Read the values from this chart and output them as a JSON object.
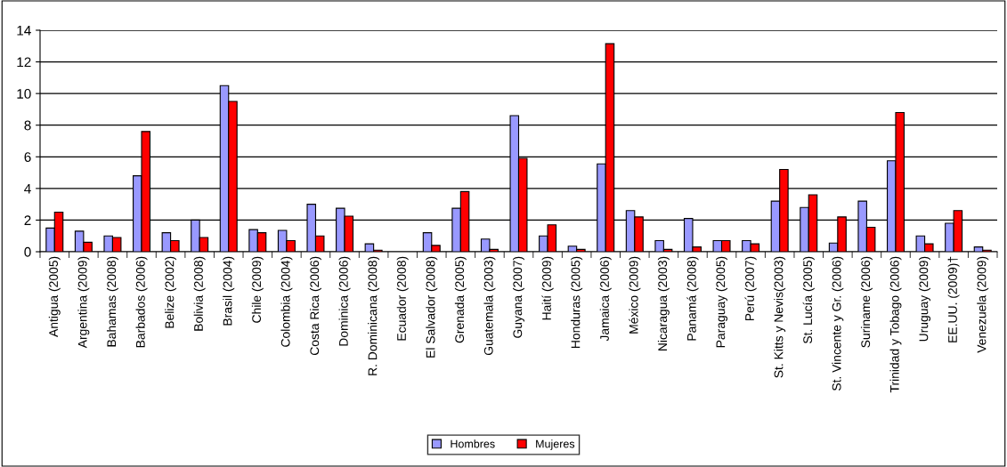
{
  "chart_data": {
    "type": "bar",
    "categories": [
      "Antigua (2005)",
      "Argentina (2009)",
      "Bahamas (2008)",
      "Barbados (2006)",
      "Belize (2002)",
      "Bolivia (2008)",
      "Brasil (2004)",
      "Chile (2009)",
      "Colombia (2004)",
      "Costa Rica (2006)",
      "Dominica (2006)",
      "R. Dominicana (2008)",
      "Ecuador (2008)",
      "El Salvador (2008)",
      "Grenada (2005)",
      "Guatemala (2003)",
      "Guyana (2007)",
      "Haití (2009)",
      "Honduras (2005)",
      "Jamaica (2006)",
      "México (2009)",
      "Nicaragua (2003)",
      "Panamá (2008)",
      "Paraguay (2005)",
      "Perú (2007)",
      "St. Kitts y Nevis(2003)",
      "St. Lucía (2005)",
      "St. Vincente y Gr. (2006)",
      "Suriname (2006)",
      "Trinidad y Tobago (2006)",
      "Uruguay (2009)",
      "EE.UU. (2009)†",
      "Venezuela (2009)"
    ],
    "series": [
      {
        "name": "Hombres",
        "color": "#9999ff",
        "values": [
          1.5,
          1.3,
          1.0,
          4.8,
          1.2,
          2.0,
          10.5,
          1.4,
          1.35,
          3.0,
          2.75,
          0.5,
          null,
          1.2,
          2.75,
          0.8,
          8.6,
          1.0,
          0.35,
          5.55,
          2.6,
          0.7,
          2.1,
          0.7,
          0.7,
          3.2,
          2.8,
          0.55,
          3.2,
          5.75,
          1.0,
          1.8,
          0.3
        ]
      },
      {
        "name": "Mujeres",
        "color": "#ff0000",
        "values": [
          2.5,
          0.6,
          0.9,
          7.6,
          0.7,
          0.9,
          9.5,
          1.2,
          0.7,
          1.0,
          2.25,
          0.1,
          null,
          0.4,
          3.8,
          0.15,
          5.9,
          1.7,
          0.15,
          13.15,
          2.2,
          0.15,
          0.3,
          0.7,
          0.5,
          5.2,
          3.6,
          2.2,
          1.55,
          8.8,
          0.5,
          2.6,
          0.1
        ]
      }
    ],
    "ylim": [
      0,
      14
    ],
    "yticks": [
      0,
      2,
      4,
      6,
      8,
      10,
      12,
      14
    ],
    "grid": "y",
    "legend": "bottom"
  }
}
